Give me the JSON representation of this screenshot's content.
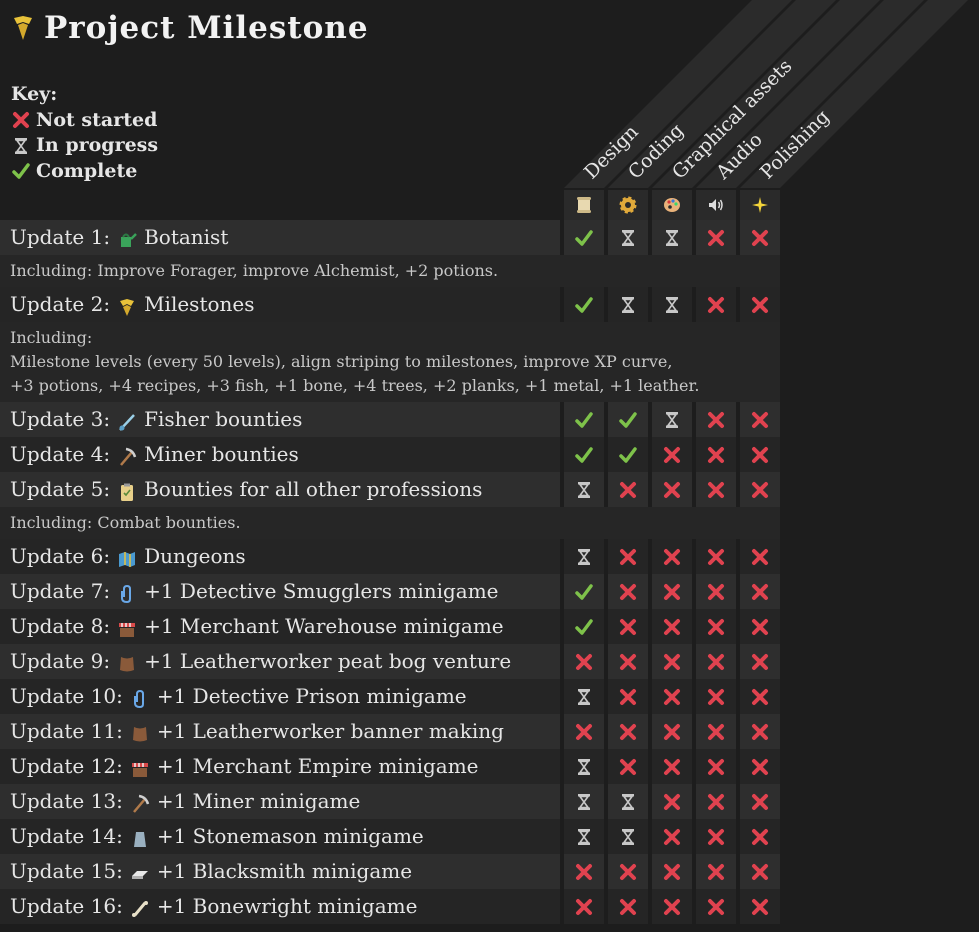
{
  "title": "Project Milestone",
  "key": {
    "heading": "Key:",
    "not_started": "Not started",
    "in_progress": "In progress",
    "complete": "Complete"
  },
  "columns": [
    {
      "label": "Design",
      "icon": "scroll-icon"
    },
    {
      "label": "Coding",
      "icon": "gear-icon"
    },
    {
      "label": "Graphical assets",
      "icon": "palette-icon"
    },
    {
      "label": "Audio",
      "icon": "speaker-icon"
    },
    {
      "label": "Polishing",
      "icon": "sparkle-icon"
    }
  ],
  "colors": {
    "complete": "#7ec24a",
    "not_started": "#e0424f",
    "in_progress": "#c8c8c8"
  },
  "updates": [
    {
      "label": "Update 1:",
      "name": "Botanist",
      "icon": "watering-can-icon",
      "status": [
        "c",
        "p",
        "p",
        "n",
        "n"
      ],
      "desc": [
        "Including: Improve Forager, improve Alchemist, +2 potions."
      ]
    },
    {
      "label": "Update 2:",
      "name": "Milestones",
      "icon": "milestone-icon",
      "status": [
        "c",
        "p",
        "p",
        "n",
        "n"
      ],
      "desc": [
        "Including:",
        "Milestone levels (every 50 levels), align striping to milestones, improve XP curve,",
        "+3 potions, +4 recipes, +3 fish, +1 bone, +4 trees, +2 planks, +1 metal, +1 leather."
      ]
    },
    {
      "label": "Update 3:",
      "name": "Fisher bounties",
      "icon": "fishing-rod-icon",
      "status": [
        "c",
        "c",
        "p",
        "n",
        "n"
      ]
    },
    {
      "label": "Update 4:",
      "name": "Miner bounties",
      "icon": "pickaxe-icon",
      "status": [
        "c",
        "c",
        "n",
        "n",
        "n"
      ]
    },
    {
      "label": "Update 5:",
      "name": "Bounties for all other professions",
      "icon": "clipboard-icon",
      "status": [
        "p",
        "n",
        "n",
        "n",
        "n"
      ],
      "desc": [
        "Including: Combat bounties."
      ]
    },
    {
      "label": "Update 6:",
      "name": "Dungeons",
      "icon": "map-icon",
      "status": [
        "p",
        "n",
        "n",
        "n",
        "n"
      ]
    },
    {
      "label": "Update 7:",
      "name": "+1 Detective Smugglers minigame",
      "icon": "paperclip-icon",
      "status": [
        "c",
        "n",
        "n",
        "n",
        "n"
      ]
    },
    {
      "label": "Update 8:",
      "name": "+1 Merchant Warehouse minigame",
      "icon": "market-stall-icon",
      "status": [
        "c",
        "n",
        "n",
        "n",
        "n"
      ]
    },
    {
      "label": "Update 9:",
      "name": "+1 Leatherworker peat bog venture",
      "icon": "leather-icon",
      "status": [
        "n",
        "n",
        "n",
        "n",
        "n"
      ]
    },
    {
      "label": "Update 10:",
      "name": "+1 Detective Prison minigame",
      "icon": "paperclip-icon",
      "status": [
        "p",
        "n",
        "n",
        "n",
        "n"
      ]
    },
    {
      "label": "Update 11:",
      "name": "+1 Leatherworker banner making",
      "icon": "leather-icon",
      "status": [
        "n",
        "n",
        "n",
        "n",
        "n"
      ]
    },
    {
      "label": "Update 12:",
      "name": "+1 Merchant Empire minigame",
      "icon": "market-stall-icon",
      "status": [
        "p",
        "n",
        "n",
        "n",
        "n"
      ]
    },
    {
      "label": "Update 13:",
      "name": "+1 Miner minigame",
      "icon": "pickaxe-icon",
      "status": [
        "p",
        "p",
        "n",
        "n",
        "n"
      ]
    },
    {
      "label": "Update 14:",
      "name": "+1 Stonemason minigame",
      "icon": "stone-icon",
      "status": [
        "p",
        "p",
        "n",
        "n",
        "n"
      ]
    },
    {
      "label": "Update 15:",
      "name": "+1 Blacksmith minigame",
      "icon": "ingot-icon",
      "status": [
        "n",
        "n",
        "n",
        "n",
        "n"
      ]
    },
    {
      "label": "Update 16:",
      "name": "+1 Bonewright minigame",
      "icon": "bone-icon",
      "status": [
        "n",
        "n",
        "n",
        "n",
        "n"
      ]
    }
  ]
}
